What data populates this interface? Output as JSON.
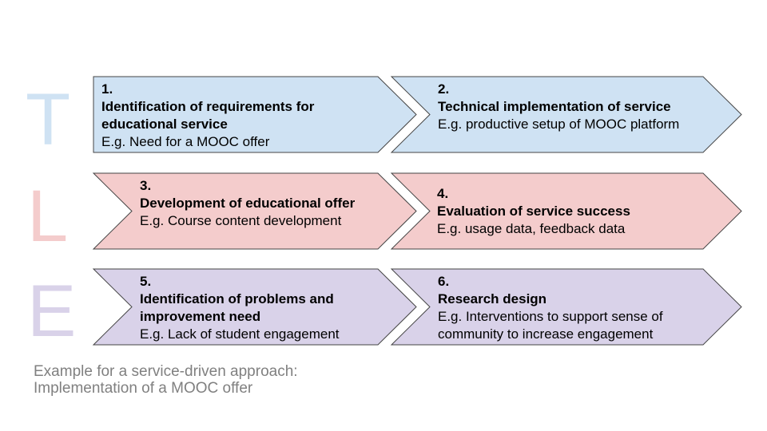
{
  "letters": {
    "t": "T",
    "l": "L",
    "e": "E"
  },
  "colors": {
    "blue": "#cfe2f3",
    "red": "#f4cccc",
    "purple": "#d9d2e9",
    "border": "#444444",
    "caption": "#808080"
  },
  "steps": [
    {
      "number": "1.",
      "title": "Identification of requirements for educational service",
      "example": "E.g. Need for a MOOC offer"
    },
    {
      "number": "2.",
      "title": "Technical implementation of service",
      "example": "E.g. productive setup of MOOC platform"
    },
    {
      "number": "3.",
      "title": "Development of educational offer",
      "example": "E.g. Course content development"
    },
    {
      "number": "4.",
      "title": "Evaluation of service success",
      "example": "E.g. usage data, feedback data"
    },
    {
      "number": "5.",
      "title": "Identification of problems and improvement need",
      "example": "E.g. Lack of student engagement"
    },
    {
      "number": "6.",
      "title": "Research design",
      "example": "E.g. Interventions to support sense of community to increase engagement"
    }
  ],
  "caption": {
    "line1": "Example for a service-driven approach:",
    "line2": "Implementation of a MOOC offer"
  }
}
